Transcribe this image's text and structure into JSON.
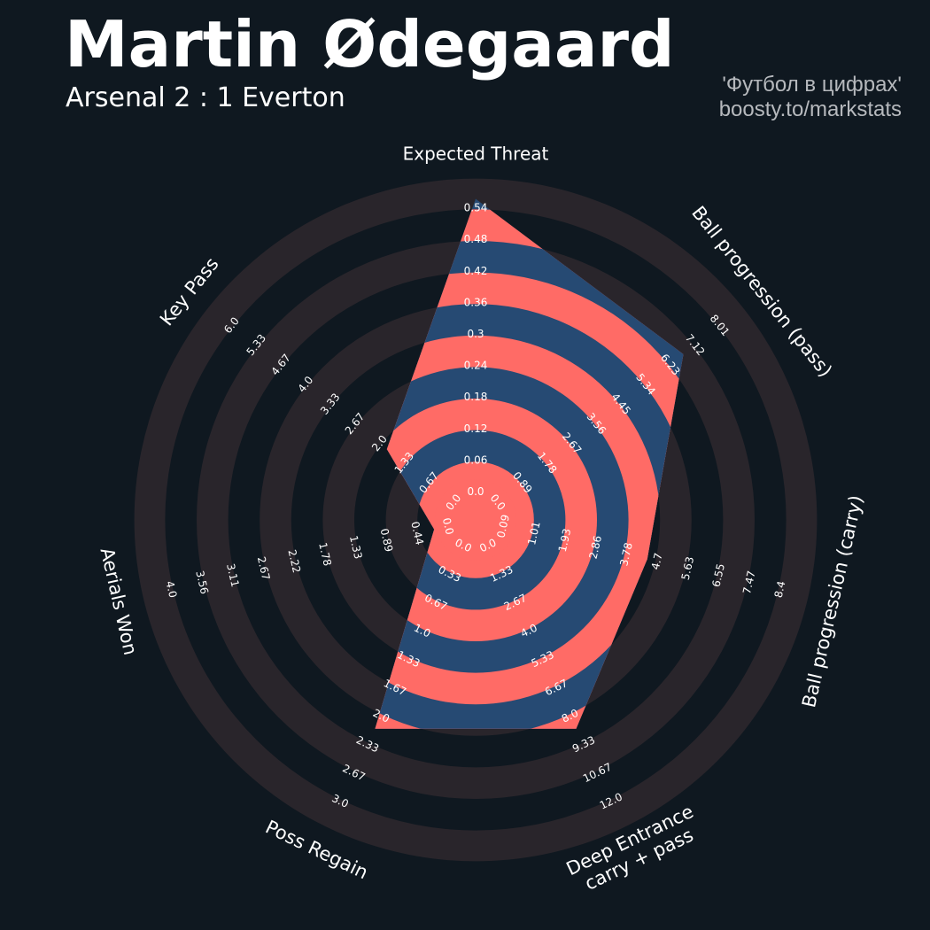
{
  "header": {
    "title": "Martin Ødegaard",
    "subtitle": "Arsenal 2 : 1 Everton",
    "credit_line1": "'Футбол в цифрах'",
    "credit_line2": "boosty.to/markstats"
  },
  "colors": {
    "background": "#0f1820",
    "ring_dark": "#29252b",
    "ring_light": "#0f1820",
    "inner_ring_coral": "#ff6b66",
    "inner_ring_blue": "#264a73",
    "text": "#ffffff",
    "credit_text": "#b6b9bd"
  },
  "chart_data": {
    "type": "radar",
    "title": "Martin Ødegaard",
    "subtitle": "Arsenal 2 : 1 Everton",
    "parameters": [
      {
        "name": "Expected Threat",
        "min": 0.0,
        "max": 0.54,
        "value": 0.53,
        "ticks": [
          "0.0",
          "0.06",
          "0.12",
          "0.18",
          "0.24",
          "0.3",
          "0.36",
          "0.42",
          "0.48",
          "0.54"
        ]
      },
      {
        "name": "Ball progression (pass)",
        "min": 0.0,
        "max": 8.01,
        "value": 6.3,
        "ticks": [
          "0.0",
          "0.89",
          "1.78",
          "2.67",
          "3.56",
          "4.45",
          "5.34",
          "6.23",
          "7.12",
          "8.01"
        ]
      },
      {
        "name": "Ball progression (carry)",
        "min": 0.09,
        "max": 8.4,
        "value": 4.0,
        "ticks": [
          "0.09",
          "1.01",
          "1.93",
          "2.86",
          "3.78",
          "4.7",
          "5.63",
          "6.55",
          "7.47",
          "8.4"
        ]
      },
      {
        "name": "Deep Entrance\ncarry + pass",
        "min": 0.0,
        "max": 12.0,
        "value": 8.0,
        "ticks": [
          "0.0",
          "1.33",
          "2.67",
          "4.0",
          "5.33",
          "6.67",
          "8.0",
          "9.33",
          "10.67",
          "12.0"
        ]
      },
      {
        "name": "Poss Regain",
        "min": 0.0,
        "max": 3.0,
        "value": 2.0,
        "ticks": [
          "0.0",
          "0.33",
          "0.67",
          "1.0",
          "1.33",
          "1.67",
          "2.0",
          "2.33",
          "2.67",
          "3.0"
        ]
      },
      {
        "name": "Aerials Won",
        "min": 0.0,
        "max": 4.0,
        "value": 0.0,
        "ticks": [
          "0.0",
          "0.44",
          "0.89",
          "1.33",
          "1.78",
          "2.22",
          "2.67",
          "3.11",
          "3.56",
          "4.0"
        ]
      },
      {
        "name": "Key Pass",
        "min": 0.0,
        "max": 6.0,
        "value": 1.5,
        "ticks": [
          "0.0",
          "0.67",
          "1.33",
          "2.0",
          "2.67",
          "3.33",
          "4.0",
          "4.67",
          "5.33",
          "6.0"
        ]
      }
    ]
  }
}
